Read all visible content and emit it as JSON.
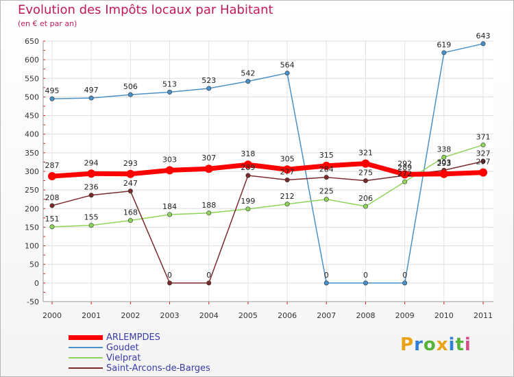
{
  "header": {
    "title": "Evolution des Impôts locaux par Habitant",
    "subtitle": "(en € et par an)"
  },
  "logo": {
    "text": "Proxiti",
    "colors": [
      "#e8a317",
      "#2e7fd6",
      "#55b33a",
      "#e8a317",
      "#2e7fd6",
      "#55b33a",
      "#d94a8c"
    ]
  },
  "chart_data": {
    "type": "line",
    "title": "Evolution des Impôts locaux par Habitant",
    "subtitle": "(en € et par an)",
    "xlabel": "",
    "ylabel": "",
    "categories": [
      "2000",
      "2001",
      "2002",
      "2003",
      "2004",
      "2005",
      "2006",
      "2007",
      "2008",
      "2009",
      "2010",
      "2011"
    ],
    "ylim": [
      -50,
      650
    ],
    "yticks": [
      -50,
      0,
      50,
      100,
      150,
      200,
      250,
      300,
      350,
      400,
      450,
      500,
      550,
      600,
      650
    ],
    "grid": true,
    "legend_position": "bottom-left",
    "series": [
      {
        "name": "ARLEMPDES",
        "color": "#ff0000",
        "values": [
          287,
          294,
          293,
          303,
          307,
          318,
          305,
          315,
          321,
          292,
          293,
          297
        ],
        "labels": [
          "287",
          "294",
          "293",
          "303",
          "307",
          "318",
          "305",
          "315",
          "321",
          "292",
          "293",
          "297"
        ]
      },
      {
        "name": "Goudet",
        "color": "#4a90c8",
        "values": [
          495,
          497,
          506,
          513,
          523,
          542,
          564,
          0,
          0,
          0,
          619,
          643
        ],
        "labels": [
          "495",
          "497",
          "506",
          "513",
          "523",
          "542",
          "564",
          "0",
          "0",
          "0",
          "619",
          "643"
        ]
      },
      {
        "name": "Vielprat",
        "color": "#8ed45a",
        "values": [
          151,
          155,
          168,
          184,
          188,
          199,
          212,
          225,
          206,
          272,
          338,
          371
        ],
        "labels": [
          "151",
          "155",
          "168",
          "184",
          "188",
          "199",
          "212",
          "225",
          "206",
          "272",
          "338",
          "371"
        ]
      },
      {
        "name": "Saint-Arcons-de-Barges",
        "color": "#7a2a2a",
        "values": [
          208,
          236,
          247,
          0,
          0,
          289,
          277,
          284,
          275,
          289,
          303,
          327
        ],
        "labels": [
          "208",
          "236",
          "247",
          "0",
          "0",
          "289",
          "277",
          "284",
          "275",
          "289",
          "303",
          "327"
        ]
      }
    ]
  }
}
